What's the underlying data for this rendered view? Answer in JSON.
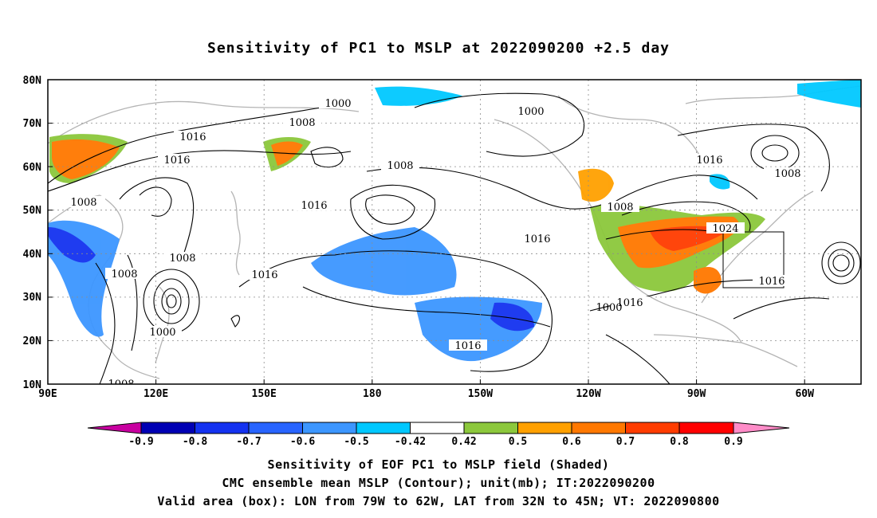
{
  "title": "Sensitivity of PC1 to MSLP at 2022090200 +2.5 day",
  "lat_labels": [
    "80N",
    "70N",
    "60N",
    "50N",
    "40N",
    "30N",
    "20N",
    "10N"
  ],
  "lon_labels": [
    "90E",
    "120E",
    "150E",
    "180",
    "150W",
    "120W",
    "90W",
    "60W"
  ],
  "contour_labels": [
    "1000",
    "1008",
    "1016",
    "1016",
    "1008",
    "1016",
    "1000",
    "1008",
    "1000",
    "1016",
    "1008",
    "1008",
    "1016",
    "1016",
    "1016",
    "1000",
    "1008",
    "1024",
    "1016",
    "1016",
    "1008",
    "1016",
    "1008"
  ],
  "colorbar": {
    "labels": [
      "-0.9",
      "-0.8",
      "-0.7",
      "-0.6",
      "-0.5",
      "-0.42",
      "0.42",
      "0.5",
      "0.6",
      "0.7",
      "0.8",
      "0.9"
    ],
    "colors": [
      "#c800a0",
      "#0000b4",
      "#1432f0",
      "#2864ff",
      "#3c96ff",
      "#00c8ff",
      "#ffffff",
      "#8cc83c",
      "#ffa000",
      "#ff7800",
      "#ff3c00",
      "#ff0000",
      "#ff8cc8"
    ]
  },
  "captions": [
    "Sensitivity of EOF PC1 to MSLP field (Shaded)",
    "CMC ensemble mean MSLP (Contour); unit(mb); IT:2022090200",
    "Valid area (box): LON from 79W to 62W, LAT from 32N to 45N; VT: 2022090800"
  ]
}
